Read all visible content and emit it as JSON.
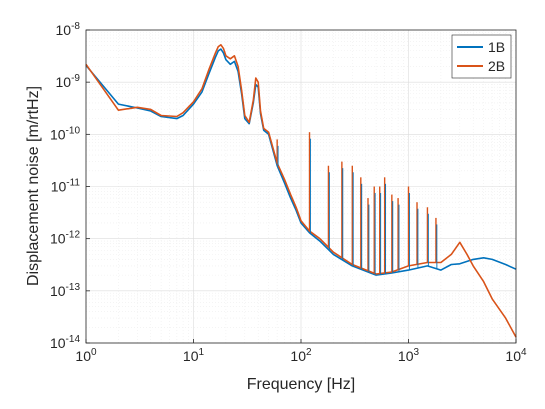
{
  "chart_data": {
    "type": "line",
    "title": "",
    "xlabel": "Frequency [Hz]",
    "ylabel": "Displacement noise [m/rtHz]",
    "x_scale": "log",
    "y_scale": "log",
    "xlim": [
      1,
      10000
    ],
    "ylim": [
      1e-14,
      1e-08
    ],
    "x_ticks": [
      {
        "base": "10",
        "exp": "0"
      },
      {
        "base": "10",
        "exp": "1"
      },
      {
        "base": "10",
        "exp": "2"
      },
      {
        "base": "10",
        "exp": "3"
      },
      {
        "base": "10",
        "exp": "4"
      }
    ],
    "y_ticks": [
      {
        "base": "10",
        "exp": "-14"
      },
      {
        "base": "10",
        "exp": "-13"
      },
      {
        "base": "10",
        "exp": "-12"
      },
      {
        "base": "10",
        "exp": "-11"
      },
      {
        "base": "10",
        "exp": "-10"
      },
      {
        "base": "10",
        "exp": "-9"
      },
      {
        "base": "10",
        "exp": "-8"
      }
    ],
    "grid": true,
    "minor_grid": true,
    "legend_position": "top-right",
    "series": [
      {
        "name": "1B",
        "color": "#0072BD",
        "x": [
          1,
          2,
          3,
          4,
          5,
          7,
          8,
          10,
          12,
          14,
          16,
          17,
          18,
          19,
          20,
          22,
          24,
          26,
          28,
          30,
          33,
          36,
          38,
          40,
          42,
          45,
          50,
          60,
          70,
          80,
          90,
          100,
          120,
          150,
          200,
          300,
          500,
          700,
          1000,
          1500,
          2000,
          2500,
          3000,
          4000,
          5000,
          6000,
          8000,
          10000
        ],
        "y": [
          2.1e-09,
          3.8e-10,
          3.2e-10,
          2.8e-10,
          2.2e-10,
          2e-10,
          2.3e-10,
          3.8e-10,
          6.5e-10,
          1.5e-09,
          3e-09,
          4e-09,
          4.3e-09,
          3.6e-09,
          2.7e-09,
          2.2e-09,
          2.5e-09,
          1.6e-09,
          6e-10,
          2e-10,
          1.6e-10,
          4e-10,
          9e-10,
          8e-10,
          2.5e-10,
          1.2e-10,
          1e-10,
          2.5e-11,
          1.2e-11,
          6e-12,
          3.5e-12,
          2e-12,
          1.3e-12,
          9e-13,
          5e-13,
          3e-13,
          2e-13,
          2.2e-13,
          2.5e-13,
          3e-13,
          2.5e-13,
          3.2e-13,
          3.3e-13,
          4e-13,
          4.3e-13,
          4e-13,
          3.2e-13,
          2.6e-13
        ]
      },
      {
        "name": "2B",
        "color": "#D95319",
        "x": [
          1,
          2,
          3,
          4,
          5,
          7,
          8,
          10,
          12,
          14,
          16,
          17,
          18,
          19,
          20,
          22,
          24,
          26,
          28,
          30,
          33,
          36,
          38,
          40,
          42,
          45,
          50,
          60,
          70,
          80,
          90,
          100,
          120,
          150,
          200,
          300,
          500,
          700,
          1000,
          1500,
          2000,
          2500,
          3000,
          3500,
          4000,
          5000,
          6000,
          8000,
          10000
        ],
        "y": [
          2.2e-09,
          2.9e-10,
          3.3e-10,
          3e-10,
          2.3e-10,
          2.2e-10,
          2.6e-10,
          4.2e-10,
          7.5e-10,
          1.8e-09,
          3.6e-09,
          4.8e-09,
          5.2e-09,
          4.4e-09,
          3.2e-09,
          2.8e-09,
          3.2e-09,
          2e-09,
          7e-10,
          2.3e-10,
          1.7e-10,
          4.5e-10,
          1.2e-09,
          1e-09,
          2.8e-10,
          1.3e-10,
          1.1e-10,
          2.8e-11,
          1.4e-11,
          7e-12,
          4e-12,
          2.2e-12,
          1.4e-12,
          1e-12,
          5.5e-13,
          3.2e-13,
          2.1e-13,
          2.3e-13,
          3e-13,
          3.5e-13,
          3.5e-13,
          5e-13,
          8.5e-13,
          5e-13,
          3e-13,
          1.5e-13,
          7e-14,
          3e-14,
          1.3e-14
        ]
      }
    ],
    "spikes": [
      {
        "x": 60,
        "y": 8e-11
      },
      {
        "x": 120,
        "y": 1.1e-10
      },
      {
        "x": 180,
        "y": 2.5e-11
      },
      {
        "x": 240,
        "y": 3e-11
      },
      {
        "x": 300,
        "y": 2.5e-11
      },
      {
        "x": 360,
        "y": 1.5e-11
      },
      {
        "x": 420,
        "y": 6e-12
      },
      {
        "x": 480,
        "y": 1e-11
      },
      {
        "x": 540,
        "y": 1e-11
      },
      {
        "x": 600,
        "y": 1.5e-11
      },
      {
        "x": 700,
        "y": 7e-12
      },
      {
        "x": 800,
        "y": 6e-12
      },
      {
        "x": 1000,
        "y": 1e-11
      },
      {
        "x": 1200,
        "y": 5e-12
      },
      {
        "x": 1500,
        "y": 4e-12
      },
      {
        "x": 1800,
        "y": 2.5e-12
      }
    ]
  }
}
